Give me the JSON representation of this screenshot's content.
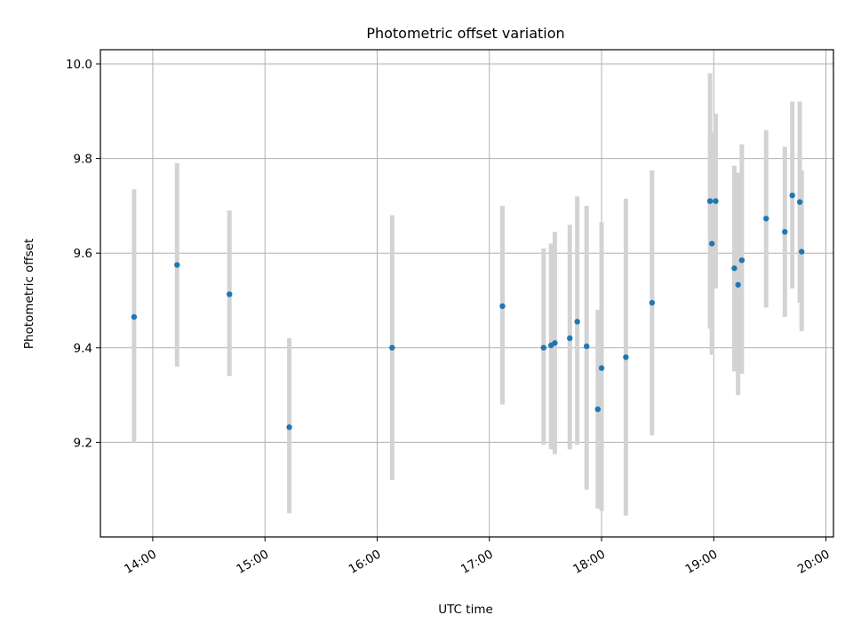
{
  "chart_data": {
    "type": "scatter",
    "title": "Photometric offset variation",
    "xlabel": "UTC time",
    "ylabel": "Photometric offset",
    "x_axis_type": "time",
    "xlim": [
      "13:32",
      "20:04"
    ],
    "ylim": [
      9.0,
      10.03
    ],
    "grid": true,
    "x_ticks": [
      "14:00",
      "15:00",
      "16:00",
      "17:00",
      "18:00",
      "19:00",
      "20:00"
    ],
    "y_ticks": [
      "9.2",
      "9.4",
      "9.6",
      "9.8",
      "10.0"
    ],
    "marker_color": "#1f77b4",
    "errorbar_color": "#d3d3d3",
    "points": [
      {
        "time": "13:50",
        "y": 9.465,
        "yerr_low": 9.2,
        "yerr_high": 9.735
      },
      {
        "time": "14:13",
        "y": 9.575,
        "yerr_low": 9.36,
        "yerr_high": 9.79
      },
      {
        "time": "14:41",
        "y": 9.513,
        "yerr_low": 9.34,
        "yerr_high": 9.69
      },
      {
        "time": "15:13",
        "y": 9.232,
        "yerr_low": 9.05,
        "yerr_high": 9.42
      },
      {
        "time": "16:08",
        "y": 9.4,
        "yerr_low": 9.12,
        "yerr_high": 9.68
      },
      {
        "time": "17:07",
        "y": 9.488,
        "yerr_low": 9.28,
        "yerr_high": 9.7
      },
      {
        "time": "17:29",
        "y": 9.4,
        "yerr_low": 9.195,
        "yerr_high": 9.61
      },
      {
        "time": "17:33",
        "y": 9.405,
        "yerr_low": 9.185,
        "yerr_high": 9.62
      },
      {
        "time": "17:35",
        "y": 9.41,
        "yerr_low": 9.175,
        "yerr_high": 9.645
      },
      {
        "time": "17:43",
        "y": 9.42,
        "yerr_low": 9.185,
        "yerr_high": 9.66
      },
      {
        "time": "17:47",
        "y": 9.455,
        "yerr_low": 9.195,
        "yerr_high": 9.72
      },
      {
        "time": "17:52",
        "y": 9.403,
        "yerr_low": 9.1,
        "yerr_high": 9.7
      },
      {
        "time": "17:58",
        "y": 9.27,
        "yerr_low": 9.06,
        "yerr_high": 9.48
      },
      {
        "time": "18:00",
        "y": 9.357,
        "yerr_low": 9.055,
        "yerr_high": 9.665
      },
      {
        "time": "18:13",
        "y": 9.38,
        "yerr_low": 9.045,
        "yerr_high": 9.715
      },
      {
        "time": "18:27",
        "y": 9.495,
        "yerr_low": 9.215,
        "yerr_high": 9.775
      },
      {
        "time": "18:58",
        "y": 9.71,
        "yerr_low": 9.44,
        "yerr_high": 9.98
      },
      {
        "time": "18:59",
        "y": 9.62,
        "yerr_low": 9.385,
        "yerr_high": 9.855
      },
      {
        "time": "19:01",
        "y": 9.71,
        "yerr_low": 9.525,
        "yerr_high": 9.895
      },
      {
        "time": "19:11",
        "y": 9.568,
        "yerr_low": 9.35,
        "yerr_high": 9.785
      },
      {
        "time": "19:13",
        "y": 9.533,
        "yerr_low": 9.3,
        "yerr_high": 9.77
      },
      {
        "time": "19:15",
        "y": 9.585,
        "yerr_low": 9.345,
        "yerr_high": 9.83
      },
      {
        "time": "19:28",
        "y": 9.673,
        "yerr_low": 9.485,
        "yerr_high": 9.86
      },
      {
        "time": "19:38",
        "y": 9.645,
        "yerr_low": 9.465,
        "yerr_high": 9.825
      },
      {
        "time": "19:42",
        "y": 9.722,
        "yerr_low": 9.525,
        "yerr_high": 9.92
      },
      {
        "time": "19:46",
        "y": 9.708,
        "yerr_low": 9.495,
        "yerr_high": 9.92
      },
      {
        "time": "19:47",
        "y": 9.603,
        "yerr_low": 9.435,
        "yerr_high": 9.775
      }
    ]
  }
}
